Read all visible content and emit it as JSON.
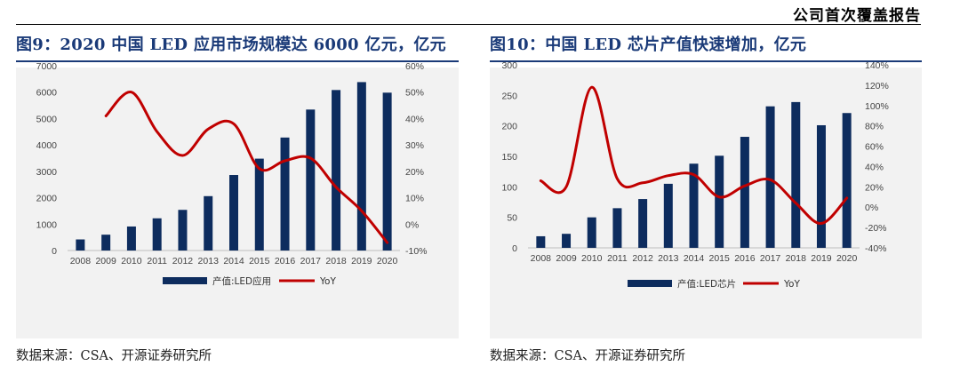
{
  "header": {
    "text": "公司首次覆盖报告"
  },
  "colors": {
    "bar": "#0d2c5e",
    "line": "#c00000",
    "title": "#1a3a78",
    "background": "#f2f2f2"
  },
  "chart_data": [
    {
      "type": "bar+line",
      "title": "图9：2020 中国 LED 应用市场规模达 6000 亿元，亿元",
      "categories": [
        "2008",
        "2009",
        "2010",
        "2011",
        "2012",
        "2013",
        "2014",
        "2015",
        "2016",
        "2017",
        "2018",
        "2019",
        "2020"
      ],
      "series": [
        {
          "name": "产值:LED应用",
          "type": "bar",
          "axis": "left",
          "values": [
            420,
            600,
            910,
            1220,
            1540,
            2060,
            2860,
            3480,
            4280,
            5340,
            6080,
            6380,
            5980
          ]
        },
        {
          "name": "YoY",
          "type": "line",
          "axis": "right",
          "values": [
            null,
            41,
            50,
            35,
            26,
            36,
            38,
            21,
            24,
            25,
            14,
            5,
            -7
          ]
        }
      ],
      "y_left": {
        "min": 0,
        "max": 7000,
        "ticks": [
          "0",
          "1000",
          "2000",
          "3000",
          "4000",
          "5000",
          "6000",
          "7000"
        ]
      },
      "y_right": {
        "min": -10,
        "max": 60,
        "ticks": [
          "-10%",
          "0%",
          "10%",
          "20%",
          "30%",
          "40%",
          "50%",
          "60%"
        ]
      },
      "source": "数据来源：CSA、开源证券研究所"
    },
    {
      "type": "bar+line",
      "title": "图10：中国 LED 芯片产值快速增加，亿元",
      "categories": [
        "2008",
        "2009",
        "2010",
        "2011",
        "2012",
        "2013",
        "2014",
        "2015",
        "2016",
        "2017",
        "2018",
        "2019",
        "2020"
      ],
      "series": [
        {
          "name": "产值:LED芯片",
          "type": "bar",
          "axis": "left",
          "values": [
            19,
            23,
            50,
            65,
            80,
            105,
            138,
            151,
            182,
            232,
            239,
            201,
            221
          ]
        },
        {
          "name": "YoY",
          "type": "line",
          "axis": "right",
          "values": [
            26,
            20,
            118,
            28,
            24,
            31,
            32,
            10,
            21,
            27,
            4,
            -16,
            9
          ]
        }
      ],
      "y_left": {
        "min": 0,
        "max": 300,
        "ticks": [
          "0",
          "50",
          "100",
          "150",
          "200",
          "250",
          "300"
        ]
      },
      "y_right": {
        "min": -40,
        "max": 140,
        "ticks": [
          "-40%",
          "-20%",
          "0%",
          "20%",
          "40%",
          "60%",
          "80%",
          "100%",
          "120%",
          "140%"
        ]
      },
      "source": "数据来源：CSA、开源证券研究所"
    }
  ]
}
